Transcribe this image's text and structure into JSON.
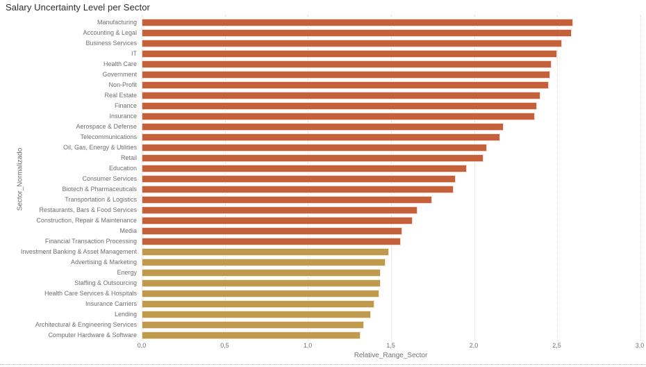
{
  "chart_data": {
    "type": "bar",
    "orientation": "horizontal",
    "title": "Salary Uncertainty Level per Sector",
    "xlabel": "Relative_Range_Sector",
    "ylabel": "Sector_Normalizado",
    "xlim": [
      0,
      3
    ],
    "grid": true,
    "x_tick_values": [
      0,
      0.5,
      1,
      1.5,
      2,
      2.5,
      3
    ],
    "x_tick_labels": [
      "0,0",
      "0,5",
      "1,0",
      "1,5",
      "2,0",
      "2,5",
      "3,0"
    ],
    "categories": [
      "Manufacturing",
      "Accounting & Legal",
      "Business Services",
      "IT",
      "Health Care",
      "Government",
      "Non-Profit",
      "Real Estate",
      "Finance",
      "Insurance",
      "Aerospace & Defense",
      "Telecommunications",
      "Oil, Gas, Energy & Utilities",
      "Retail",
      "Education",
      "Consumer Services",
      "Biotech & Pharmaceuticals",
      "Transportation & Logistics",
      "Restaurants, Bars & Food Services",
      "Construction, Repair & Maintenance",
      "Media",
      "Financial Transaction Processing",
      "Investment Banking & Asset Management",
      "Advertising & Marketing",
      "Energy",
      "Staffing & Outsourcing",
      "Health Care Services & Hospitals",
      "Insurance Carriers",
      "Lending",
      "Architectural & Engineering Services",
      "Computer Hardware & Software"
    ],
    "values": [
      2.6,
      2.59,
      2.53,
      2.5,
      2.47,
      2.46,
      2.45,
      2.4,
      2.38,
      2.37,
      2.18,
      2.16,
      2.08,
      2.06,
      1.96,
      1.89,
      1.88,
      1.75,
      1.66,
      1.63,
      1.57,
      1.56,
      1.49,
      1.47,
      1.44,
      1.44,
      1.43,
      1.4,
      1.38,
      1.34,
      1.32
    ],
    "bar_colors": [
      "#C4613A",
      "#C4613A",
      "#C4613A",
      "#C4613A",
      "#C4613A",
      "#C4613A",
      "#C4613A",
      "#C4613A",
      "#C4613A",
      "#C4613A",
      "#C4613A",
      "#C4613A",
      "#C4613A",
      "#C4613A",
      "#C4613A",
      "#C4613A",
      "#C4613A",
      "#C4613A",
      "#C4613A",
      "#C4613A",
      "#C4613A",
      "#C4613A",
      "#BF9A4D",
      "#BF9A4D",
      "#BF9A4D",
      "#BF9A4D",
      "#BF9A4D",
      "#BF9A4D",
      "#BF9A4D",
      "#BF9A4D",
      "#BF9A4D"
    ],
    "color_legend": {
      "high_color": "#C4613A",
      "low_color": "#BF9A4D",
      "threshold": 1.5
    },
    "gridline_color": "#D8D8D8",
    "axis_text_color": "#6F6F6F",
    "title_text_color": "#2B2B2B"
  }
}
